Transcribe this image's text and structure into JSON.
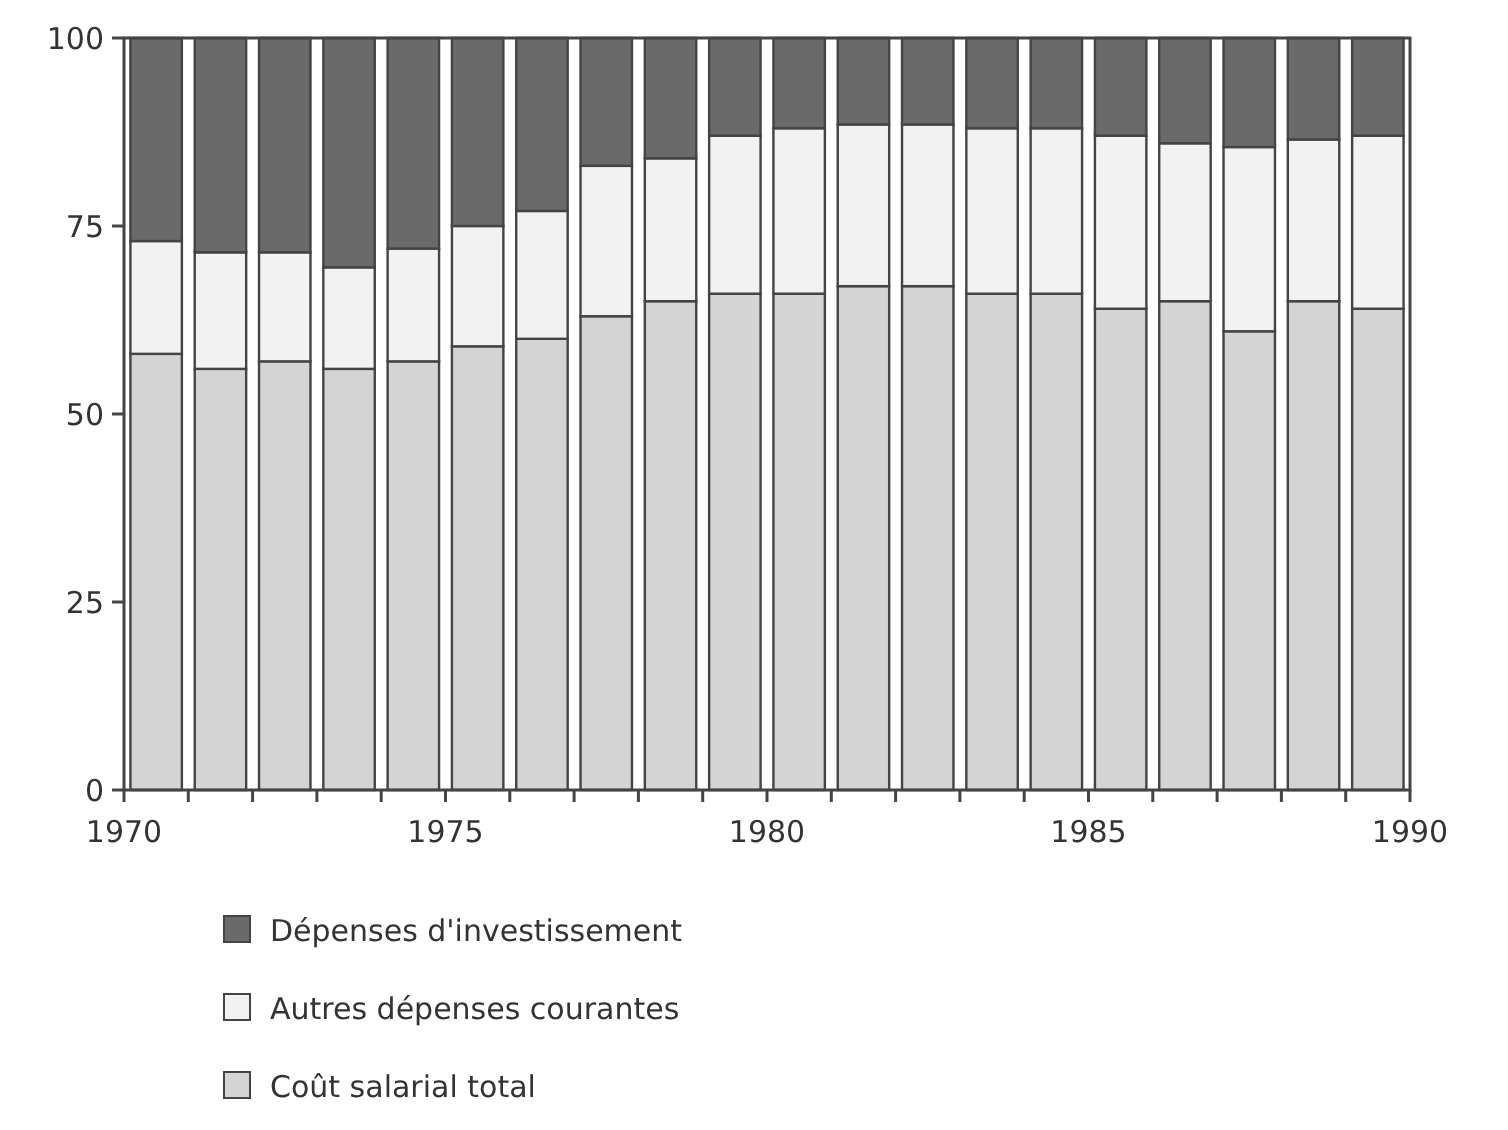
{
  "chart_data": {
    "type": "bar",
    "stacked": true,
    "x": [
      1970.5,
      1971.5,
      1972.5,
      1973.5,
      1974.5,
      1975.5,
      1976.5,
      1977.5,
      1978.5,
      1979.5,
      1980.5,
      1981.5,
      1982.5,
      1983.5,
      1984.5,
      1985.5,
      1986.5,
      1987.5,
      1988.5,
      1989.5
    ],
    "xlim": [
      1970,
      1990
    ],
    "xticks": [
      1970,
      1975,
      1980,
      1985,
      1990
    ],
    "ylim": [
      0,
      100
    ],
    "yticks": [
      0,
      25,
      50,
      75,
      100
    ],
    "legend": "bottom",
    "series": [
      {
        "name": "Coût salarial total",
        "color": "#d4d4d4",
        "values": [
          58,
          56,
          57,
          56,
          57,
          59,
          60,
          63,
          65,
          66,
          66,
          67,
          67,
          66,
          66,
          64,
          65,
          61,
          65,
          64
        ]
      },
      {
        "name": "Autres dépenses courantes",
        "color": "#f2f2f2",
        "values": [
          15,
          15.5,
          14.5,
          13.5,
          15,
          16,
          17,
          20,
          19,
          21,
          22,
          21.5,
          21.5,
          22,
          22,
          23,
          21,
          24.5,
          21.5,
          23
        ]
      },
      {
        "name": "Dépenses d'investissement",
        "color": "#6a6a6a",
        "values": [
          27,
          28.5,
          28.5,
          30.5,
          28,
          25,
          23,
          17,
          16,
          13,
          12,
          11.5,
          11.5,
          12,
          12,
          13,
          14,
          14.5,
          13.5,
          13
        ]
      }
    ]
  }
}
